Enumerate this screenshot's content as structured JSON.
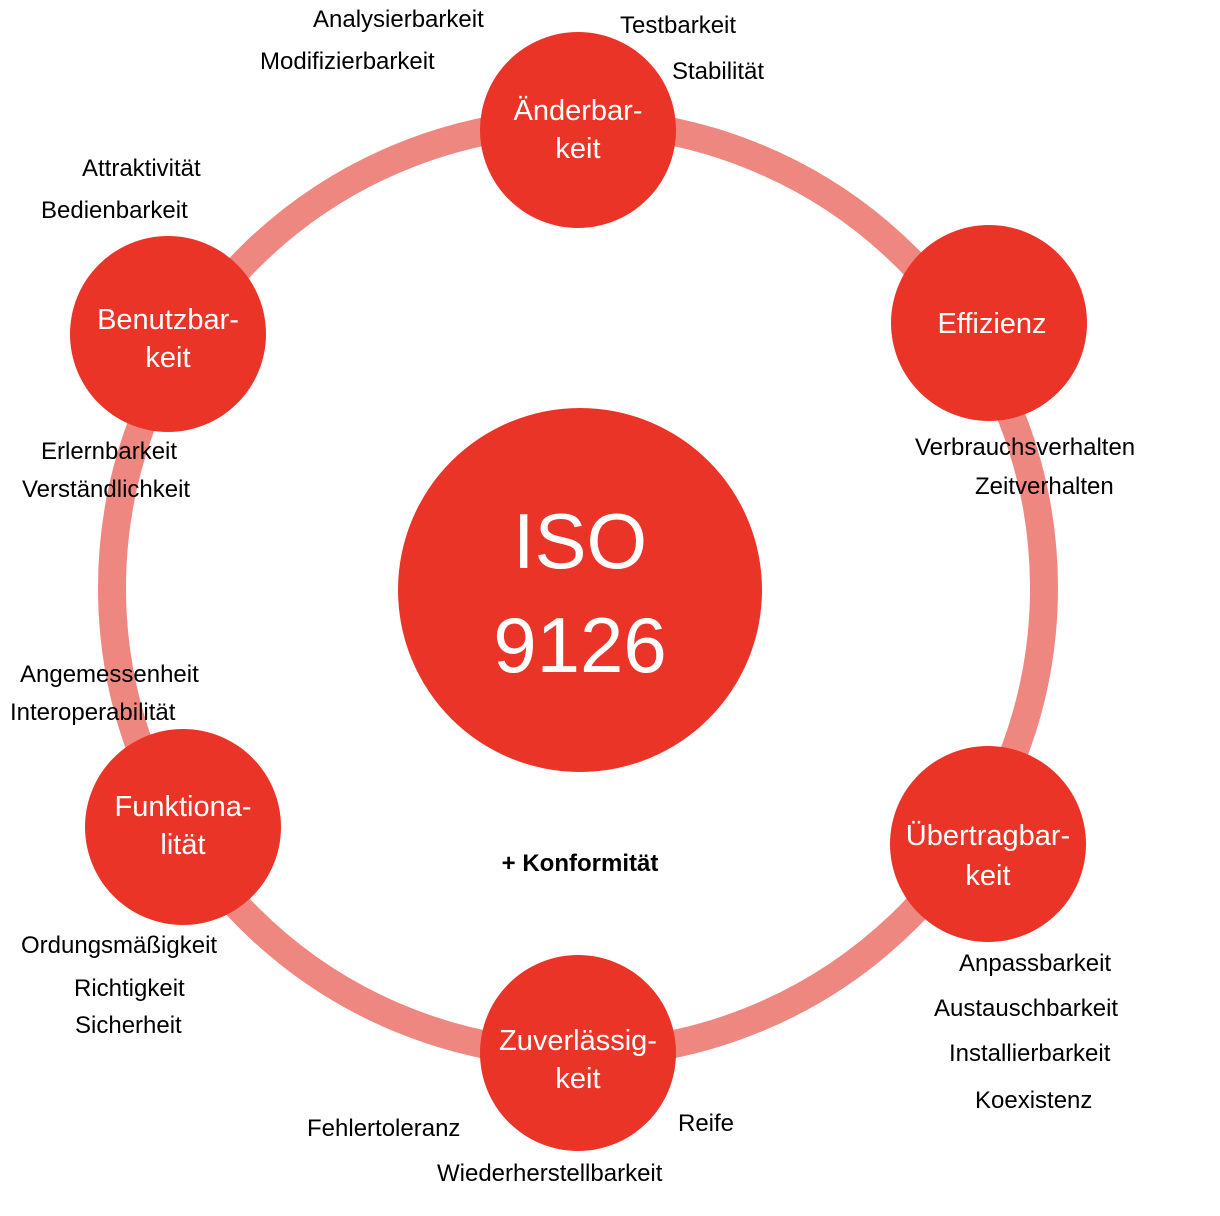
{
  "colors": {
    "node_fill": "#e93427",
    "ring_stroke": "#ef8781",
    "node_text": "#ffffff",
    "sub_text": "#000000"
  },
  "center": {
    "line1": "ISO",
    "line2": "9126"
  },
  "note": "+ Konformität",
  "nodes": {
    "aenderbarkeit": {
      "line1": "Änderbar-",
      "line2": "keit",
      "subs": [
        "Analysierbarkeit",
        "Modifizierbarkeit",
        "Testbarkeit",
        "Stabilität"
      ]
    },
    "effizienz": {
      "line1": "Effizienz",
      "subs": [
        "Verbrauchsverhalten",
        "Zeitverhalten"
      ]
    },
    "uebertragbarkeit": {
      "line1": "Übertragbar-",
      "line2": "keit",
      "subs": [
        "Anpassbarkeit",
        "Austauschbarkeit",
        "Installierbarkeit",
        "Koexistenz"
      ]
    },
    "zuverlaessigkeit": {
      "line1": "Zuverlässig-",
      "line2": "keit",
      "subs": [
        "Fehlertoleranz",
        "Reife",
        "Wiederherstellbarkeit"
      ]
    },
    "funktionalitaet": {
      "line1": "Funktiona-",
      "line2": "lität",
      "subs": [
        "Angemessenheit",
        "Interoperabilität",
        "Ordungsmäßigkeit",
        "Richtigkeit",
        "Sicherheit"
      ]
    },
    "benutzbarkeit": {
      "line1": "Benutzbar-",
      "line2": "keit",
      "subs": [
        "Attraktivität",
        "Bedienbarkeit",
        "Erlernbarkeit",
        "Verständlichkeit"
      ]
    }
  }
}
